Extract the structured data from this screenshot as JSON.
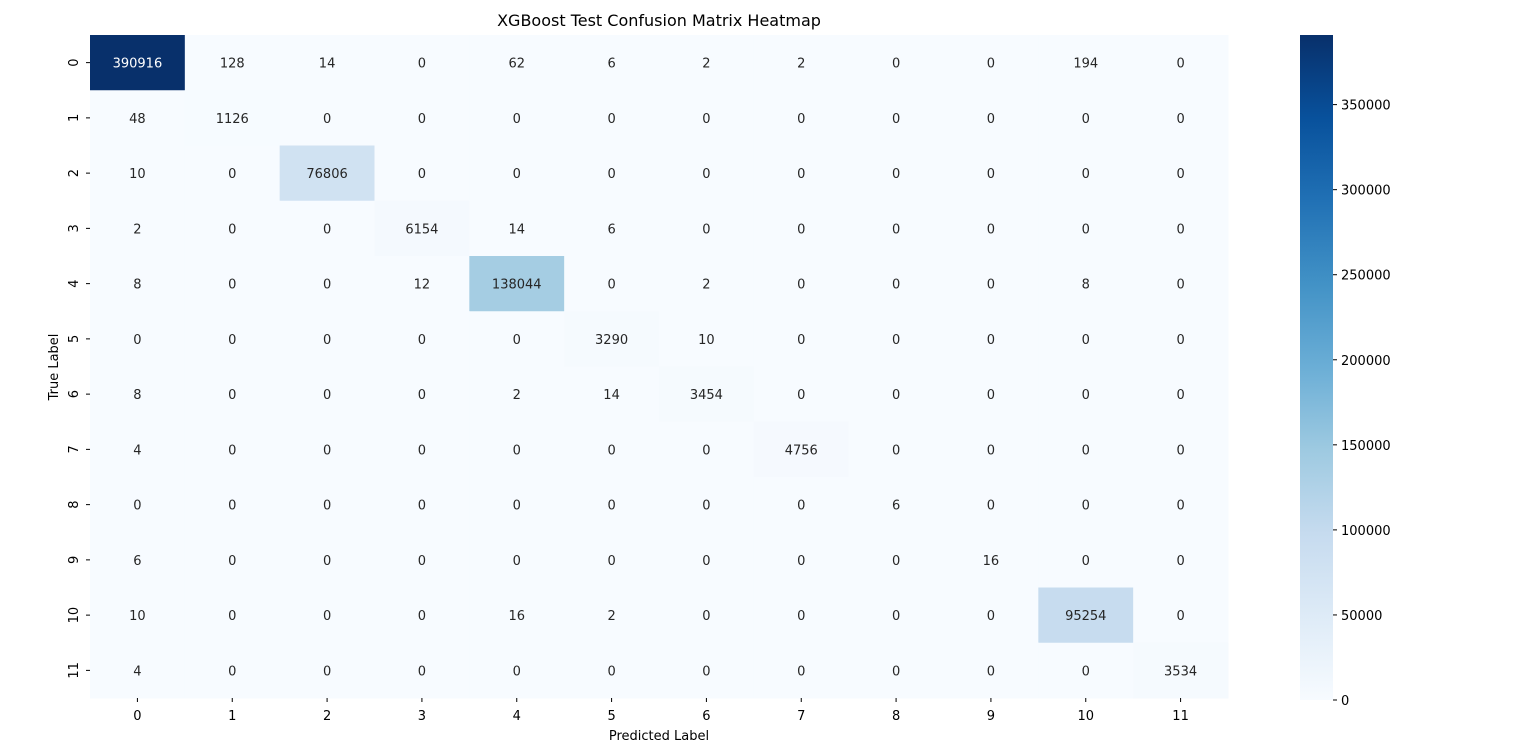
{
  "chart_data": {
    "type": "heatmap",
    "title": "XGBoost Test Confusion Matrix Heatmap",
    "xlabel": "Predicted Label",
    "ylabel": "True Label",
    "x_categories": [
      "0",
      "1",
      "2",
      "3",
      "4",
      "5",
      "6",
      "7",
      "8",
      "9",
      "10",
      "11"
    ],
    "y_categories": [
      "0",
      "1",
      "2",
      "3",
      "4",
      "5",
      "6",
      "7",
      "8",
      "9",
      "10",
      "11"
    ],
    "matrix": [
      [
        390916,
        128,
        14,
        0,
        62,
        6,
        2,
        2,
        0,
        0,
        194,
        0
      ],
      [
        48,
        1126,
        0,
        0,
        0,
        0,
        0,
        0,
        0,
        0,
        0,
        0
      ],
      [
        10,
        0,
        76806,
        0,
        0,
        0,
        0,
        0,
        0,
        0,
        0,
        0
      ],
      [
        2,
        0,
        0,
        6154,
        14,
        6,
        0,
        0,
        0,
        0,
        0,
        0
      ],
      [
        8,
        0,
        0,
        12,
        138044,
        0,
        2,
        0,
        0,
        0,
        8,
        0
      ],
      [
        0,
        0,
        0,
        0,
        0,
        3290,
        10,
        0,
        0,
        0,
        0,
        0
      ],
      [
        8,
        0,
        0,
        0,
        2,
        14,
        3454,
        0,
        0,
        0,
        0,
        0
      ],
      [
        4,
        0,
        0,
        0,
        0,
        0,
        0,
        4756,
        0,
        0,
        0,
        0
      ],
      [
        0,
        0,
        0,
        0,
        0,
        0,
        0,
        0,
        6,
        0,
        0,
        0
      ],
      [
        6,
        0,
        0,
        0,
        0,
        0,
        0,
        0,
        0,
        16,
        0,
        0
      ],
      [
        10,
        0,
        0,
        0,
        16,
        2,
        0,
        0,
        0,
        0,
        95254,
        0
      ],
      [
        4,
        0,
        0,
        0,
        0,
        0,
        0,
        0,
        0,
        0,
        0,
        3534
      ]
    ],
    "colormap": "Blues",
    "colormap_stops": [
      "#f7fbff",
      "#deebf7",
      "#c6dbef",
      "#9ecae1",
      "#6baed6",
      "#4292c6",
      "#2171b5",
      "#08519c",
      "#08306b"
    ],
    "colorbar": {
      "range": [
        0,
        390916
      ],
      "ticks": [
        0,
        50000,
        100000,
        150000,
        200000,
        250000,
        300000,
        350000
      ]
    },
    "grid": false,
    "legend": "colorbar-right"
  }
}
